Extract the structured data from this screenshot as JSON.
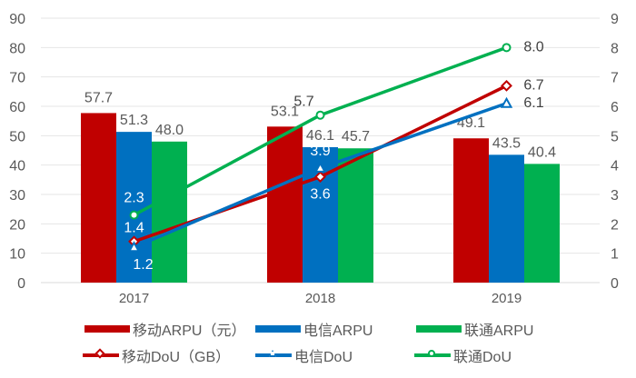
{
  "chart_data": {
    "type": "bar+line",
    "categories": [
      "2017",
      "2018",
      "2019"
    ],
    "left_axis": {
      "ylim": [
        0,
        90
      ],
      "ticks": [
        0,
        10,
        20,
        30,
        40,
        50,
        60,
        70,
        80,
        90
      ]
    },
    "right_axis": {
      "ylim": [
        0,
        9
      ],
      "ticks": [
        0,
        1,
        2,
        3,
        4,
        5,
        6,
        7,
        8,
        9
      ]
    },
    "grid": true,
    "legend_position": "bottom",
    "bar_series": [
      {
        "name": "移动ARPU（元）",
        "values": [
          57.7,
          53.1,
          49.1
        ],
        "labels": [
          "57.7",
          "53.1",
          "49.1"
        ],
        "color": "#c00000"
      },
      {
        "name": "电信ARPU",
        "values": [
          51.3,
          46.1,
          43.5
        ],
        "labels": [
          "51.3",
          "46.1",
          "43.5"
        ],
        "color": "#0070c0"
      },
      {
        "name": "联通ARPU",
        "values": [
          48.0,
          45.7,
          40.4
        ],
        "labels": [
          "48.0",
          "45.7",
          "40.4"
        ],
        "color": "#00b050"
      }
    ],
    "line_series": [
      {
        "name": "移动DoU（GB）",
        "values": [
          1.4,
          3.6,
          6.7
        ],
        "labels": [
          "1.4",
          "3.6",
          "6.7"
        ],
        "color": "#c00000",
        "marker": "diamond"
      },
      {
        "name": "电信DoU",
        "values": [
          1.2,
          3.9,
          6.1
        ],
        "labels": [
          "1.2",
          "3.9",
          "6.1"
        ],
        "color": "#0070c0",
        "marker": "triangle"
      },
      {
        "name": "联通DoU",
        "values": [
          2.3,
          5.7,
          8.0
        ],
        "labels": [
          "2.3",
          "5.7",
          "8.0"
        ],
        "color": "#00b050",
        "marker": "circle"
      }
    ]
  }
}
